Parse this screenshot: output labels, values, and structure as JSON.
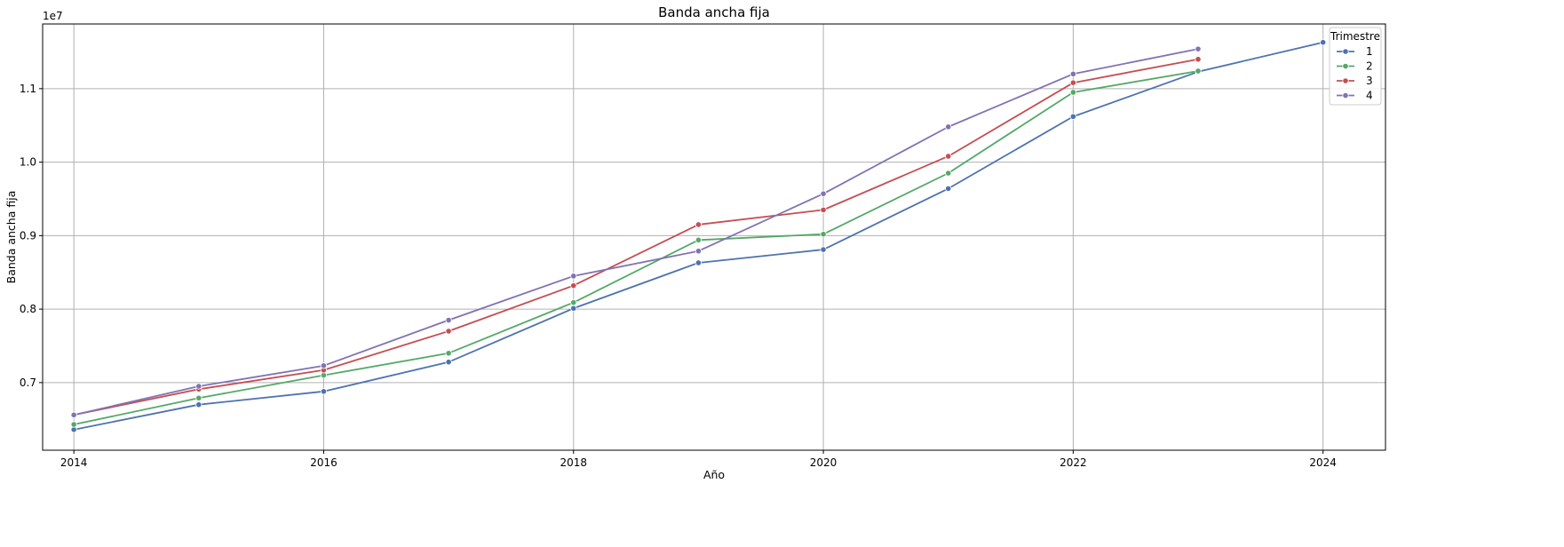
{
  "chart_data": {
    "type": "line",
    "title": "Banda ancha fija",
    "xlabel": "Año",
    "ylabel": "Banda ancha fija",
    "y_offset_label": "1e7",
    "xlim": [
      2013.75,
      2024.5
    ],
    "ylim": [
      6.08,
      11.88
    ],
    "x_ticks": [
      2014,
      2016,
      2018,
      2020,
      2022,
      2024
    ],
    "y_ticks": [
      7.0,
      8.0,
      9.0,
      10.0,
      11.0
    ],
    "y_tick_labels": [
      "0.7",
      "0.8",
      "0.9",
      "1.0",
      "1.1"
    ],
    "grid": true,
    "legend": {
      "title": "Trimestre",
      "placement": "top-right"
    },
    "series": [
      {
        "name": "1",
        "color": "#4c72b0",
        "x": [
          2014,
          2015,
          2016,
          2017,
          2018,
          2019,
          2020,
          2021,
          2022,
          2023,
          2024
        ],
        "values": [
          6.36,
          6.7,
          6.88,
          7.28,
          8.01,
          8.63,
          8.81,
          9.64,
          10.62,
          11.23,
          11.63
        ]
      },
      {
        "name": "2",
        "color": "#55a868",
        "x": [
          2014,
          2015,
          2016,
          2017,
          2018,
          2019,
          2020,
          2021,
          2022,
          2023
        ],
        "values": [
          6.43,
          6.79,
          7.1,
          7.4,
          8.09,
          8.94,
          9.02,
          9.85,
          10.95,
          11.24
        ]
      },
      {
        "name": "3",
        "color": "#c44e52",
        "x": [
          2014,
          2015,
          2016,
          2017,
          2018,
          2019,
          2020,
          2021,
          2022,
          2023
        ],
        "values": [
          6.56,
          6.91,
          7.17,
          7.7,
          8.32,
          9.15,
          9.35,
          10.08,
          11.08,
          11.4
        ]
      },
      {
        "name": "4",
        "color": "#8172b3",
        "x": [
          2014,
          2015,
          2016,
          2017,
          2018,
          2019,
          2020,
          2021,
          2022,
          2023
        ],
        "values": [
          6.56,
          6.95,
          7.23,
          7.85,
          8.45,
          8.79,
          9.57,
          10.48,
          11.2,
          11.54
        ]
      }
    ]
  }
}
